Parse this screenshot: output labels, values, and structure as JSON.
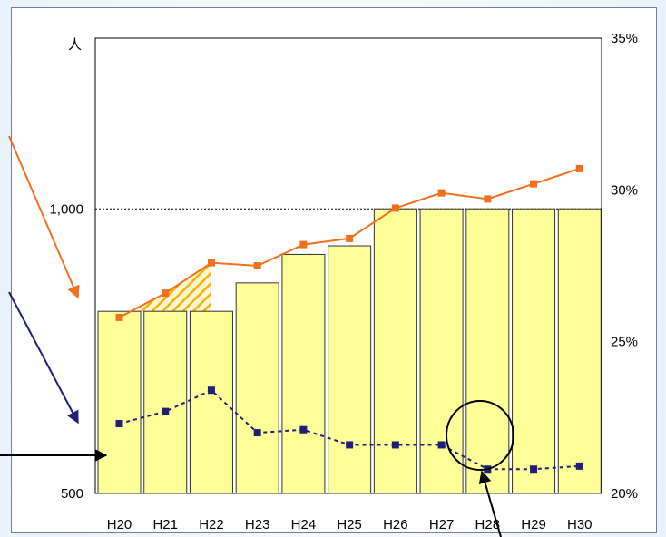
{
  "chart_data": {
    "type": "bar",
    "categories": [
      "H20",
      "H21",
      "H22",
      "H23",
      "H24",
      "H25",
      "H26",
      "H27",
      "H28",
      "H29",
      "H30"
    ],
    "series": [
      {
        "kind": "bar",
        "axis": "left",
        "values": [
          820,
          820,
          820,
          870,
          920,
          935,
          1000,
          1000,
          1000,
          1000,
          1000
        ]
      },
      {
        "kind": "line",
        "axis": "right",
        "style": "solid",
        "values": [
          25.8,
          26.6,
          27.6,
          27.5,
          28.2,
          28.4,
          29.4,
          29.9,
          29.7,
          30.2,
          30.7
        ]
      },
      {
        "kind": "line",
        "axis": "right",
        "style": "dashed",
        "values": [
          22.3,
          22.7,
          23.4,
          22.0,
          22.1,
          21.6,
          21.6,
          21.6,
          20.8,
          20.8,
          20.9
        ]
      }
    ],
    "y_left": {
      "ylim": [
        500,
        1300
      ],
      "unit_label": "人",
      "ticks": [
        500,
        1000
      ],
      "tick_labels": [
        "500",
        "1,000"
      ]
    },
    "y_right": {
      "ylim": [
        20,
        35
      ],
      "ticks": [
        20,
        25,
        30,
        35
      ],
      "tick_labels": [
        "20%",
        "25%",
        "30%",
        "35%"
      ]
    },
    "reference_line": 1000,
    "colors": {
      "bar_fill": "#ffff99",
      "bar_stroke": "#333333",
      "line_solid": "#f0701e",
      "line_dashed": "#1f1f7a",
      "hatch": "#f5b400",
      "arrow_orange": "#f0701e",
      "arrow_navy": "#1f1f7a",
      "arrow_black": "#000000"
    }
  }
}
